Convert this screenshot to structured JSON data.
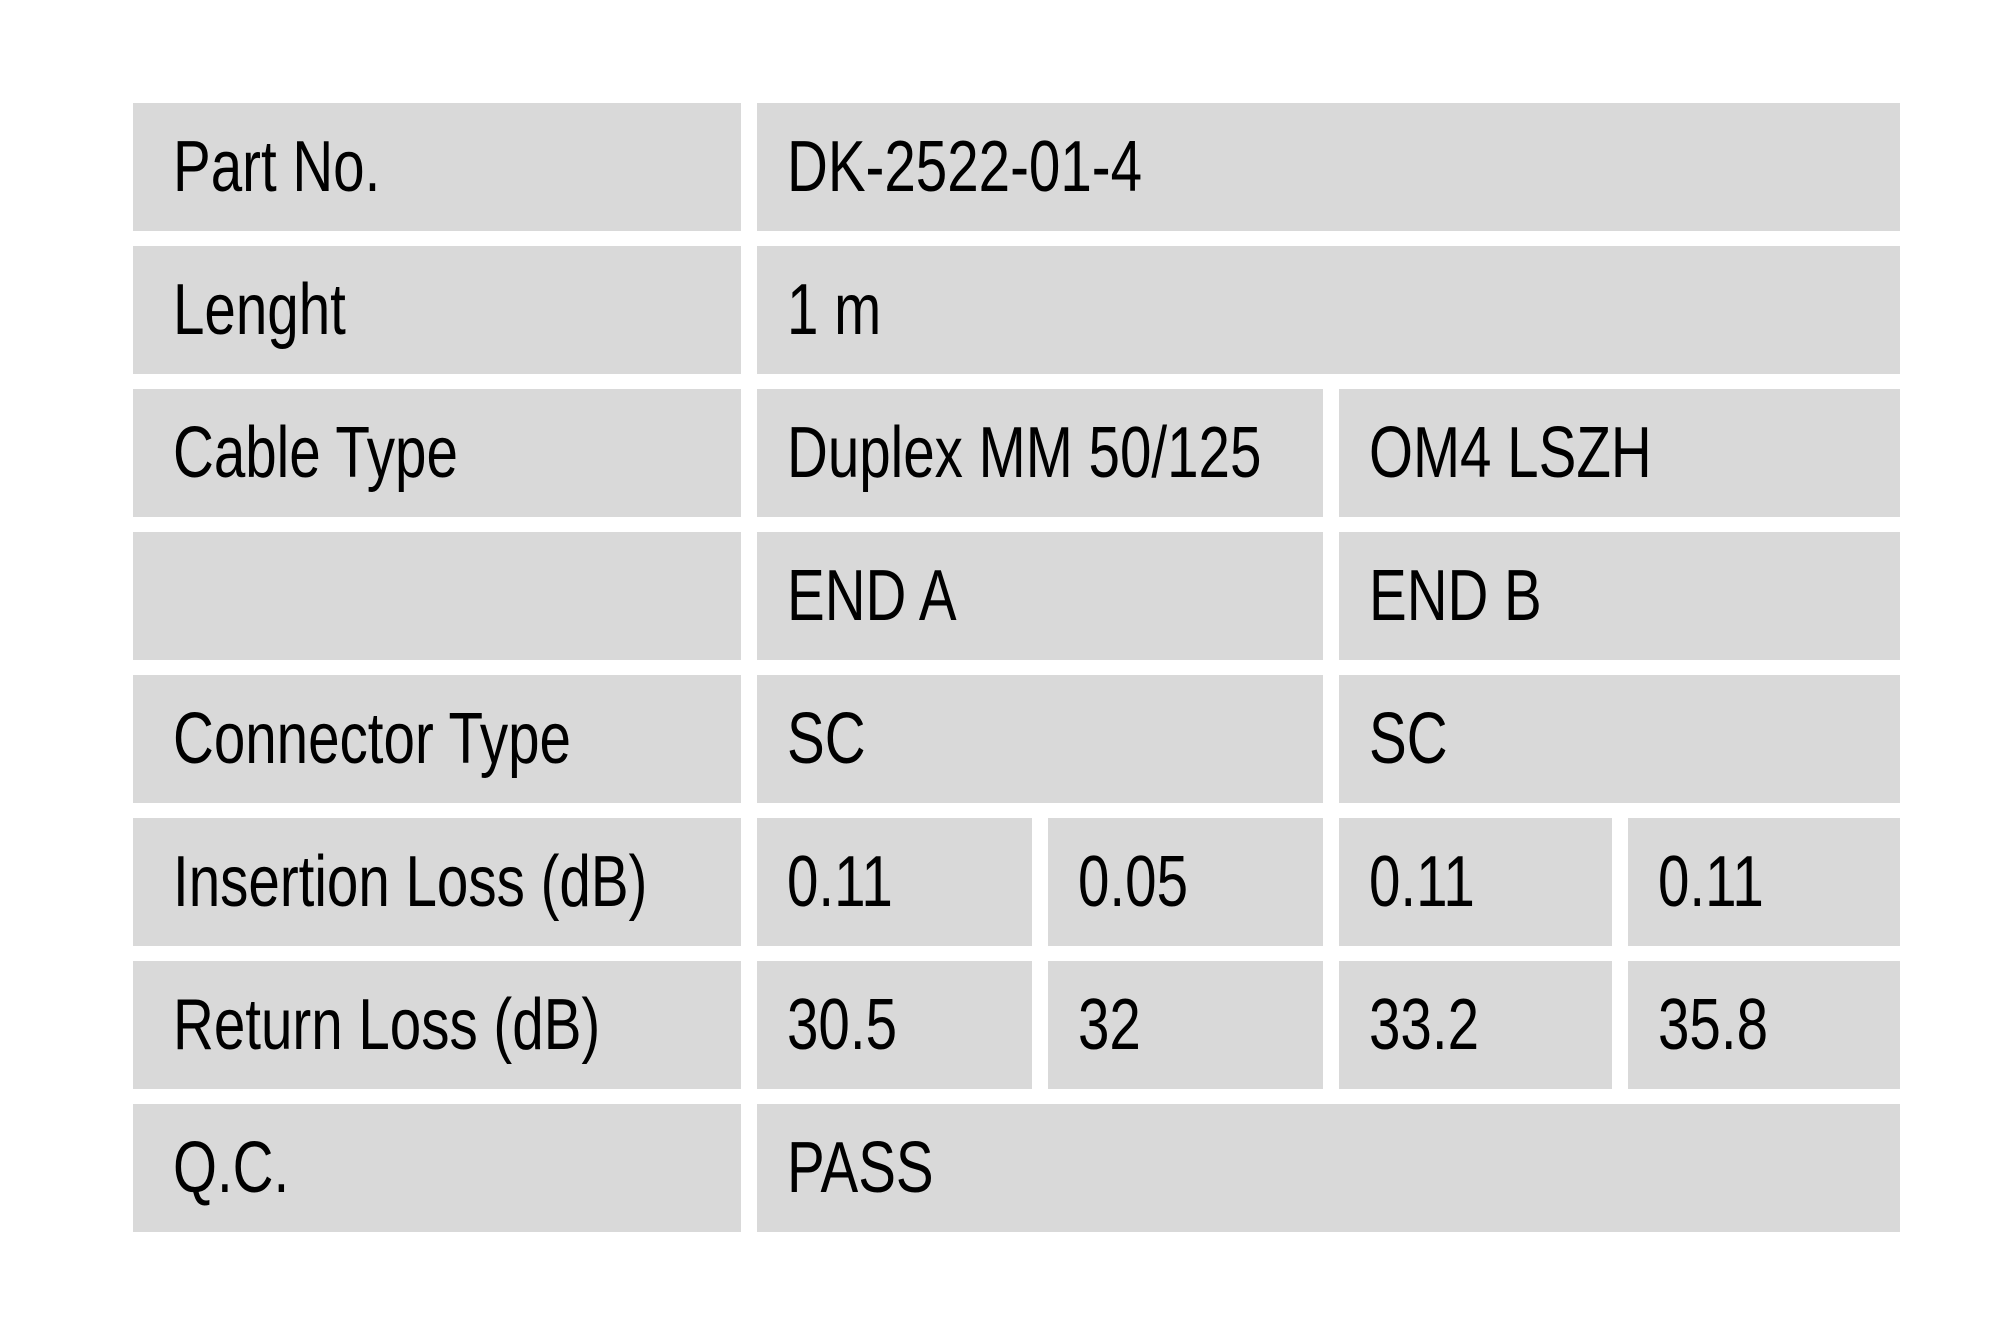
{
  "colors": {
    "page_bg": "#ffffff",
    "cell_bg": "#d9d9d9",
    "text": "#000000"
  },
  "table": {
    "rows": [
      {
        "label": "Part No.",
        "value": "DK-2522-01-4"
      },
      {
        "label": "Lenght",
        "value": "1 m"
      },
      {
        "label": "Cable Type",
        "end_a": "Duplex MM 50/125",
        "end_b": "OM4 LSZH"
      },
      {
        "label": "",
        "end_a": "END A",
        "end_b": "END B"
      },
      {
        "label": "Connector Type",
        "end_a": "SC",
        "end_b": "SC"
      },
      {
        "label": "Insertion Loss (dB)",
        "values": [
          "0.11",
          "0.05",
          "0.11",
          "0.11"
        ]
      },
      {
        "label": "Return Loss (dB)",
        "values": [
          "30.5",
          "32",
          "33.2",
          "35.8"
        ]
      },
      {
        "label": "Q.C.",
        "value": "PASS"
      }
    ]
  }
}
